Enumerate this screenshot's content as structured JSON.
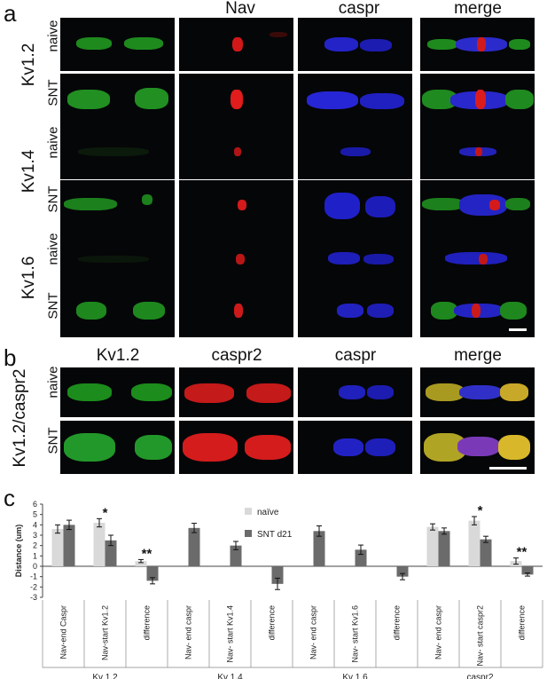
{
  "panel_a": {
    "letter": "a",
    "columns": [
      "Nav",
      "caspr",
      "merge"
    ],
    "groups": [
      {
        "label": "Kv1.2",
        "rows": [
          "naive",
          "SNT"
        ]
      },
      {
        "label": "Kv1.4",
        "rows": [
          "naive",
          "SNT"
        ]
      },
      {
        "label": "Kv1.6",
        "rows": [
          "naive",
          "SNT"
        ]
      }
    ]
  },
  "panel_b": {
    "letter": "b",
    "columns": [
      "Kv1.2",
      "caspr2",
      "caspr",
      "merge"
    ],
    "group": "Kv1.2/caspr2",
    "rows": [
      "naive",
      "SNT"
    ]
  },
  "panel_c": {
    "letter": "c"
  },
  "chart_data": {
    "type": "bar",
    "ylabel": "Distance (um)",
    "ylim": [
      -3,
      6
    ],
    "yticks": [
      -3,
      -2,
      -1,
      0,
      1,
      2,
      3,
      4,
      5,
      6
    ],
    "legend": [
      "naïve",
      "SNT d21"
    ],
    "legend_position": "top-right",
    "colors": {
      "naive": "#d9d9d9",
      "snt": "#6b6b6b"
    },
    "categories": [
      "Nav-end Caspr",
      "Nav-start Kv1.2",
      "difference",
      "Nav- end caspr",
      "Nav- start Kv1.4",
      "difference",
      "Nav- end caspr",
      "Nav- start Kv1.6",
      "difference",
      "Nav- end caspr",
      "Nav- start caspr2",
      "difference"
    ],
    "groups": [
      "Kv 1.2",
      "Kv 1.4",
      "Kv 1.6",
      "caspr2"
    ],
    "series": [
      {
        "name": "naïve",
        "values": [
          3.6,
          4.2,
          0.5,
          null,
          null,
          null,
          null,
          null,
          null,
          3.8,
          4.4,
          0.5
        ],
        "errors": [
          0.4,
          0.4,
          0.15,
          null,
          null,
          null,
          null,
          null,
          null,
          0.3,
          0.4,
          0.3
        ]
      },
      {
        "name": "SNT d21",
        "values": [
          4.0,
          2.5,
          -1.4,
          3.7,
          2.0,
          -1.7,
          3.4,
          1.6,
          -1.0,
          3.4,
          2.6,
          -0.8
        ],
        "errors": [
          0.45,
          0.5,
          0.3,
          0.45,
          0.4,
          0.55,
          0.5,
          0.45,
          0.3,
          0.3,
          0.3,
          0.15
        ]
      }
    ],
    "annotations": [
      {
        "category_index": 1,
        "text": "*"
      },
      {
        "category_index": 2,
        "text": "**"
      },
      {
        "category_index": 10,
        "text": "*"
      },
      {
        "category_index": 11,
        "text": "**"
      }
    ]
  }
}
